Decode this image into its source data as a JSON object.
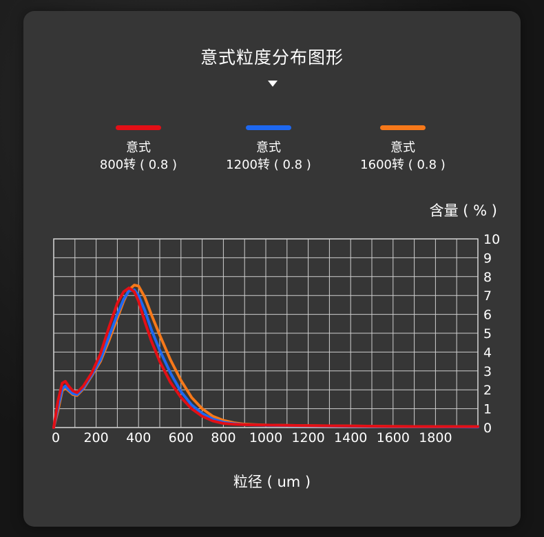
{
  "header": {
    "title": "意式粒度分布图形"
  },
  "legend": [
    {
      "line1": "意式",
      "line2": "800转 ( 0.8 )",
      "color": "#e30f16"
    },
    {
      "line1": "意式",
      "line2": "1200转 ( 0.8 )",
      "color": "#1e68f0"
    },
    {
      "line1": "意式",
      "line2": "1600转 ( 0.8 )",
      "color": "#f6781a"
    }
  ],
  "chart_data": {
    "type": "line",
    "xlabel": "粒径 ( um )",
    "ylabel": "含量 ( % )",
    "xlim": [
      0,
      2000
    ],
    "ylim": [
      0,
      10
    ],
    "x_ticks": [
      0,
      200,
      400,
      600,
      800,
      1000,
      1200,
      1400,
      1600,
      1800
    ],
    "y_ticks": [
      0,
      1,
      2,
      3,
      4,
      5,
      6,
      7,
      8,
      9,
      10
    ],
    "grid": true,
    "series": [
      {
        "name": "意式 800转 ( 0.8 )",
        "color": "#e30f16",
        "x": [
          0,
          20,
          40,
          55,
          70,
          90,
          110,
          140,
          180,
          220,
          260,
          300,
          330,
          355,
          380,
          400,
          430,
          460,
          500,
          550,
          600,
          650,
          700,
          750,
          800,
          850,
          900,
          1000,
          1200,
          1400,
          1600,
          1800,
          2000
        ],
        "y": [
          0,
          1.4,
          2.35,
          2.45,
          2.2,
          1.95,
          1.85,
          2.2,
          2.9,
          3.9,
          5.3,
          6.6,
          7.2,
          7.4,
          7.2,
          6.7,
          5.6,
          4.6,
          3.5,
          2.4,
          1.6,
          1.0,
          0.6,
          0.35,
          0.22,
          0.17,
          0.15,
          0.13,
          0.1,
          0.08,
          0.06,
          0.05,
          0.05
        ]
      },
      {
        "name": "意式 1200转 ( 0.8 )",
        "color": "#1e68f0",
        "x": [
          0,
          20,
          40,
          55,
          70,
          90,
          110,
          140,
          180,
          220,
          260,
          300,
          330,
          355,
          380,
          400,
          430,
          460,
          500,
          550,
          600,
          650,
          700,
          750,
          800,
          850,
          900,
          1000,
          1200,
          1400,
          1600,
          1800,
          2000
        ],
        "y": [
          0,
          1.1,
          2.05,
          2.2,
          2.0,
          1.8,
          1.75,
          2.1,
          2.8,
          3.6,
          4.8,
          6.0,
          6.8,
          7.25,
          7.3,
          7.0,
          6.2,
          5.2,
          4.1,
          2.9,
          1.9,
          1.2,
          0.75,
          0.45,
          0.28,
          0.2,
          0.15,
          0.12,
          0.09,
          0.07,
          0.05,
          0.04,
          0.03
        ]
      },
      {
        "name": "意式 1600转 ( 0.8 )",
        "color": "#f6781a",
        "x": [
          0,
          20,
          40,
          55,
          70,
          90,
          110,
          140,
          180,
          220,
          260,
          300,
          330,
          355,
          380,
          400,
          430,
          460,
          500,
          550,
          600,
          650,
          700,
          750,
          800,
          850,
          900,
          1000,
          1200,
          1400,
          1600,
          1800,
          2000
        ],
        "y": [
          0,
          0.9,
          1.95,
          2.1,
          1.95,
          1.75,
          1.7,
          2.05,
          2.75,
          3.5,
          4.6,
          5.8,
          6.7,
          7.3,
          7.55,
          7.5,
          6.9,
          6.0,
          4.9,
          3.6,
          2.5,
          1.6,
          1.0,
          0.6,
          0.38,
          0.25,
          0.18,
          0.13,
          0.1,
          0.08,
          0.06,
          0.05,
          0.04
        ]
      }
    ]
  }
}
